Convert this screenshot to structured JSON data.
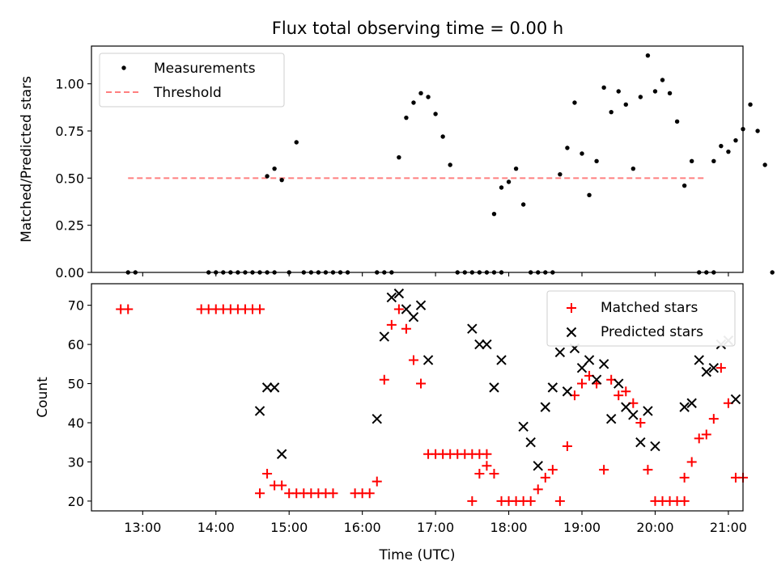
{
  "chart_data": [
    {
      "type": "scatter",
      "title": "Flux total observing time = 0.00 h",
      "xlabel": "",
      "ylabel": "Matched/Predicted stars",
      "ylim": [
        0.0,
        1.2
      ],
      "xlim": [
        "12:18",
        "21:12"
      ],
      "yticks": [
        "0.00",
        "0.25",
        "0.50",
        "0.75",
        "1.00"
      ],
      "legend_position": "top-left",
      "threshold": 0.5,
      "threshold_range": [
        "12:48",
        "20:42"
      ],
      "threshold_color": "#ff7f7f",
      "series": [
        {
          "name": "Measurements",
          "color": "#000000",
          "marker": "dot",
          "points": [
            [
              "12:48",
              0.0
            ],
            [
              "12:54",
              0.0
            ],
            [
              "13:54",
              0.0
            ],
            [
              "14:00",
              0.0
            ],
            [
              "14:06",
              0.0
            ],
            [
              "14:12",
              0.0
            ],
            [
              "14:18",
              0.0
            ],
            [
              "14:24",
              0.0
            ],
            [
              "14:30",
              0.0
            ],
            [
              "14:36",
              0.0
            ],
            [
              "14:42",
              0.0
            ],
            [
              "14:48",
              0.0
            ],
            [
              "14:42",
              0.51
            ],
            [
              "14:48",
              0.55
            ],
            [
              "14:54",
              0.49
            ],
            [
              "15:00",
              0.0
            ],
            [
              "15:06",
              0.69
            ],
            [
              "15:12",
              0.0
            ],
            [
              "15:18",
              0.0
            ],
            [
              "15:24",
              0.0
            ],
            [
              "15:30",
              0.0
            ],
            [
              "15:36",
              0.0
            ],
            [
              "15:42",
              0.0
            ],
            [
              "15:48",
              0.0
            ],
            [
              "16:12",
              0.0
            ],
            [
              "16:18",
              0.0
            ],
            [
              "16:24",
              0.0
            ],
            [
              "16:30",
              0.61
            ],
            [
              "16:36",
              0.82
            ],
            [
              "16:42",
              0.9
            ],
            [
              "16:48",
              0.95
            ],
            [
              "16:54",
              0.93
            ],
            [
              "17:00",
              0.84
            ],
            [
              "17:06",
              0.72
            ],
            [
              "17:12",
              0.57
            ],
            [
              "17:18",
              0.0
            ],
            [
              "17:24",
              0.0
            ],
            [
              "17:30",
              0.0
            ],
            [
              "17:36",
              0.0
            ],
            [
              "17:42",
              0.0
            ],
            [
              "17:48",
              0.0
            ],
            [
              "17:54",
              0.0
            ],
            [
              "17:48",
              0.31
            ],
            [
              "17:54",
              0.45
            ],
            [
              "18:00",
              0.48
            ],
            [
              "18:06",
              0.55
            ],
            [
              "18:12",
              0.36
            ],
            [
              "18:18",
              0.0
            ],
            [
              "18:24",
              0.0
            ],
            [
              "18:30",
              0.0
            ],
            [
              "18:36",
              0.0
            ],
            [
              "18:42",
              0.52
            ],
            [
              "18:48",
              0.66
            ],
            [
              "18:54",
              0.9
            ],
            [
              "19:00",
              0.63
            ],
            [
              "19:06",
              0.41
            ],
            [
              "19:12",
              0.59
            ],
            [
              "19:18",
              0.98
            ],
            [
              "19:24",
              0.85
            ],
            [
              "19:30",
              0.96
            ],
            [
              "19:36",
              0.89
            ],
            [
              "19:42",
              0.55
            ],
            [
              "19:48",
              0.93
            ],
            [
              "19:54",
              1.15
            ],
            [
              "20:00",
              0.96
            ],
            [
              "20:06",
              1.02
            ],
            [
              "20:12",
              0.95
            ],
            [
              "20:18",
              0.8
            ],
            [
              "20:24",
              0.46
            ],
            [
              "20:30",
              0.59
            ],
            [
              "20:36",
              0.0
            ],
            [
              "20:42",
              0.0
            ],
            [
              "20:48",
              0.0
            ],
            [
              "20:48",
              0.59
            ],
            [
              "20:54",
              0.67
            ],
            [
              "21:00",
              0.64
            ],
            [
              "21:06",
              0.7
            ],
            [
              "21:12",
              0.76
            ],
            [
              "21:18",
              0.89
            ],
            [
              "21:24",
              0.75
            ],
            [
              "21:30",
              0.57
            ],
            [
              "21:36",
              0.0
            ]
          ]
        }
      ]
    },
    {
      "type": "scatter",
      "title": "",
      "xlabel": "Time (UTC)",
      "ylabel": "Count",
      "ylim": [
        17.5,
        75.5
      ],
      "xlim": [
        "12:18",
        "21:12"
      ],
      "yticks": [
        "20",
        "30",
        "40",
        "50",
        "60",
        "70"
      ],
      "xticks": [
        "13:00",
        "14:00",
        "15:00",
        "16:00",
        "17:00",
        "18:00",
        "19:00",
        "20:00",
        "21:00"
      ],
      "legend_position": "top-right",
      "series": [
        {
          "name": "Matched stars",
          "color": "#ff0000",
          "marker": "plus",
          "points": [
            [
              "12:42",
              69
            ],
            [
              "12:48",
              69
            ],
            [
              "13:48",
              69
            ],
            [
              "13:54",
              69
            ],
            [
              "14:00",
              69
            ],
            [
              "14:06",
              69
            ],
            [
              "14:12",
              69
            ],
            [
              "14:18",
              69
            ],
            [
              "14:24",
              69
            ],
            [
              "14:30",
              69
            ],
            [
              "14:36",
              69
            ],
            [
              "14:36",
              22
            ],
            [
              "14:42",
              27
            ],
            [
              "14:48",
              24
            ],
            [
              "14:54",
              24
            ],
            [
              "15:00",
              22
            ],
            [
              "15:06",
              22
            ],
            [
              "15:12",
              22
            ],
            [
              "15:18",
              22
            ],
            [
              "15:24",
              22
            ],
            [
              "15:30",
              22
            ],
            [
              "15:36",
              22
            ],
            [
              "15:54",
              22
            ],
            [
              "16:00",
              22
            ],
            [
              "16:06",
              22
            ],
            [
              "16:12",
              25
            ],
            [
              "16:18",
              51
            ],
            [
              "16:24",
              65
            ],
            [
              "16:30",
              69
            ],
            [
              "16:36",
              64
            ],
            [
              "16:42",
              56
            ],
            [
              "16:48",
              50
            ],
            [
              "16:54",
              32
            ],
            [
              "17:00",
              32
            ],
            [
              "17:06",
              32
            ],
            [
              "17:12",
              32
            ],
            [
              "17:18",
              32
            ],
            [
              "17:24",
              32
            ],
            [
              "17:30",
              32
            ],
            [
              "17:36",
              32
            ],
            [
              "17:42",
              32
            ],
            [
              "17:30",
              20
            ],
            [
              "17:36",
              27
            ],
            [
              "17:42",
              29
            ],
            [
              "17:48",
              27
            ],
            [
              "17:54",
              20
            ],
            [
              "18:00",
              20
            ],
            [
              "18:06",
              20
            ],
            [
              "18:12",
              20
            ],
            [
              "18:18",
              20
            ],
            [
              "18:24",
              23
            ],
            [
              "18:30",
              26
            ],
            [
              "18:36",
              28
            ],
            [
              "18:42",
              20
            ],
            [
              "18:48",
              34
            ],
            [
              "18:54",
              47
            ],
            [
              "19:00",
              50
            ],
            [
              "19:06",
              52
            ],
            [
              "19:12",
              50
            ],
            [
              "19:18",
              28
            ],
            [
              "19:24",
              51
            ],
            [
              "19:30",
              47
            ],
            [
              "19:36",
              48
            ],
            [
              "19:42",
              45
            ],
            [
              "19:48",
              40
            ],
            [
              "19:54",
              28
            ],
            [
              "20:00",
              20
            ],
            [
              "20:06",
              20
            ],
            [
              "20:12",
              20
            ],
            [
              "20:18",
              20
            ],
            [
              "20:24",
              20
            ],
            [
              "20:24",
              26
            ],
            [
              "20:30",
              30
            ],
            [
              "20:36",
              36
            ],
            [
              "20:42",
              37
            ],
            [
              "20:48",
              41
            ],
            [
              "20:54",
              54
            ],
            [
              "21:00",
              45
            ],
            [
              "21:06",
              26
            ],
            [
              "21:12",
              26
            ]
          ]
        },
        {
          "name": "Predicted stars",
          "color": "#000000",
          "marker": "x",
          "points": [
            [
              "14:36",
              43
            ],
            [
              "14:42",
              49
            ],
            [
              "14:48",
              49
            ],
            [
              "14:54",
              32
            ],
            [
              "16:12",
              41
            ],
            [
              "16:18",
              62
            ],
            [
              "16:24",
              72
            ],
            [
              "16:30",
              73
            ],
            [
              "16:36",
              69
            ],
            [
              "16:42",
              67
            ],
            [
              "16:48",
              70
            ],
            [
              "16:54",
              56
            ],
            [
              "17:30",
              64
            ],
            [
              "17:36",
              60
            ],
            [
              "17:42",
              60
            ],
            [
              "17:48",
              49
            ],
            [
              "17:54",
              56
            ],
            [
              "18:12",
              39
            ],
            [
              "18:18",
              35
            ],
            [
              "18:24",
              29
            ],
            [
              "18:30",
              44
            ],
            [
              "18:36",
              49
            ],
            [
              "18:42",
              58
            ],
            [
              "18:48",
              48
            ],
            [
              "18:54",
              59
            ],
            [
              "19:00",
              54
            ],
            [
              "19:06",
              56
            ],
            [
              "19:12",
              51
            ],
            [
              "19:18",
              55
            ],
            [
              "19:24",
              41
            ],
            [
              "19:30",
              50
            ],
            [
              "19:36",
              44
            ],
            [
              "19:42",
              42
            ],
            [
              "19:48",
              35
            ],
            [
              "19:54",
              43
            ],
            [
              "20:00",
              34
            ],
            [
              "20:24",
              44
            ],
            [
              "20:30",
              45
            ],
            [
              "20:36",
              56
            ],
            [
              "20:42",
              53
            ],
            [
              "20:48",
              54
            ],
            [
              "20:54",
              60
            ],
            [
              "21:00",
              61
            ],
            [
              "21:06",
              46
            ]
          ]
        }
      ]
    }
  ]
}
